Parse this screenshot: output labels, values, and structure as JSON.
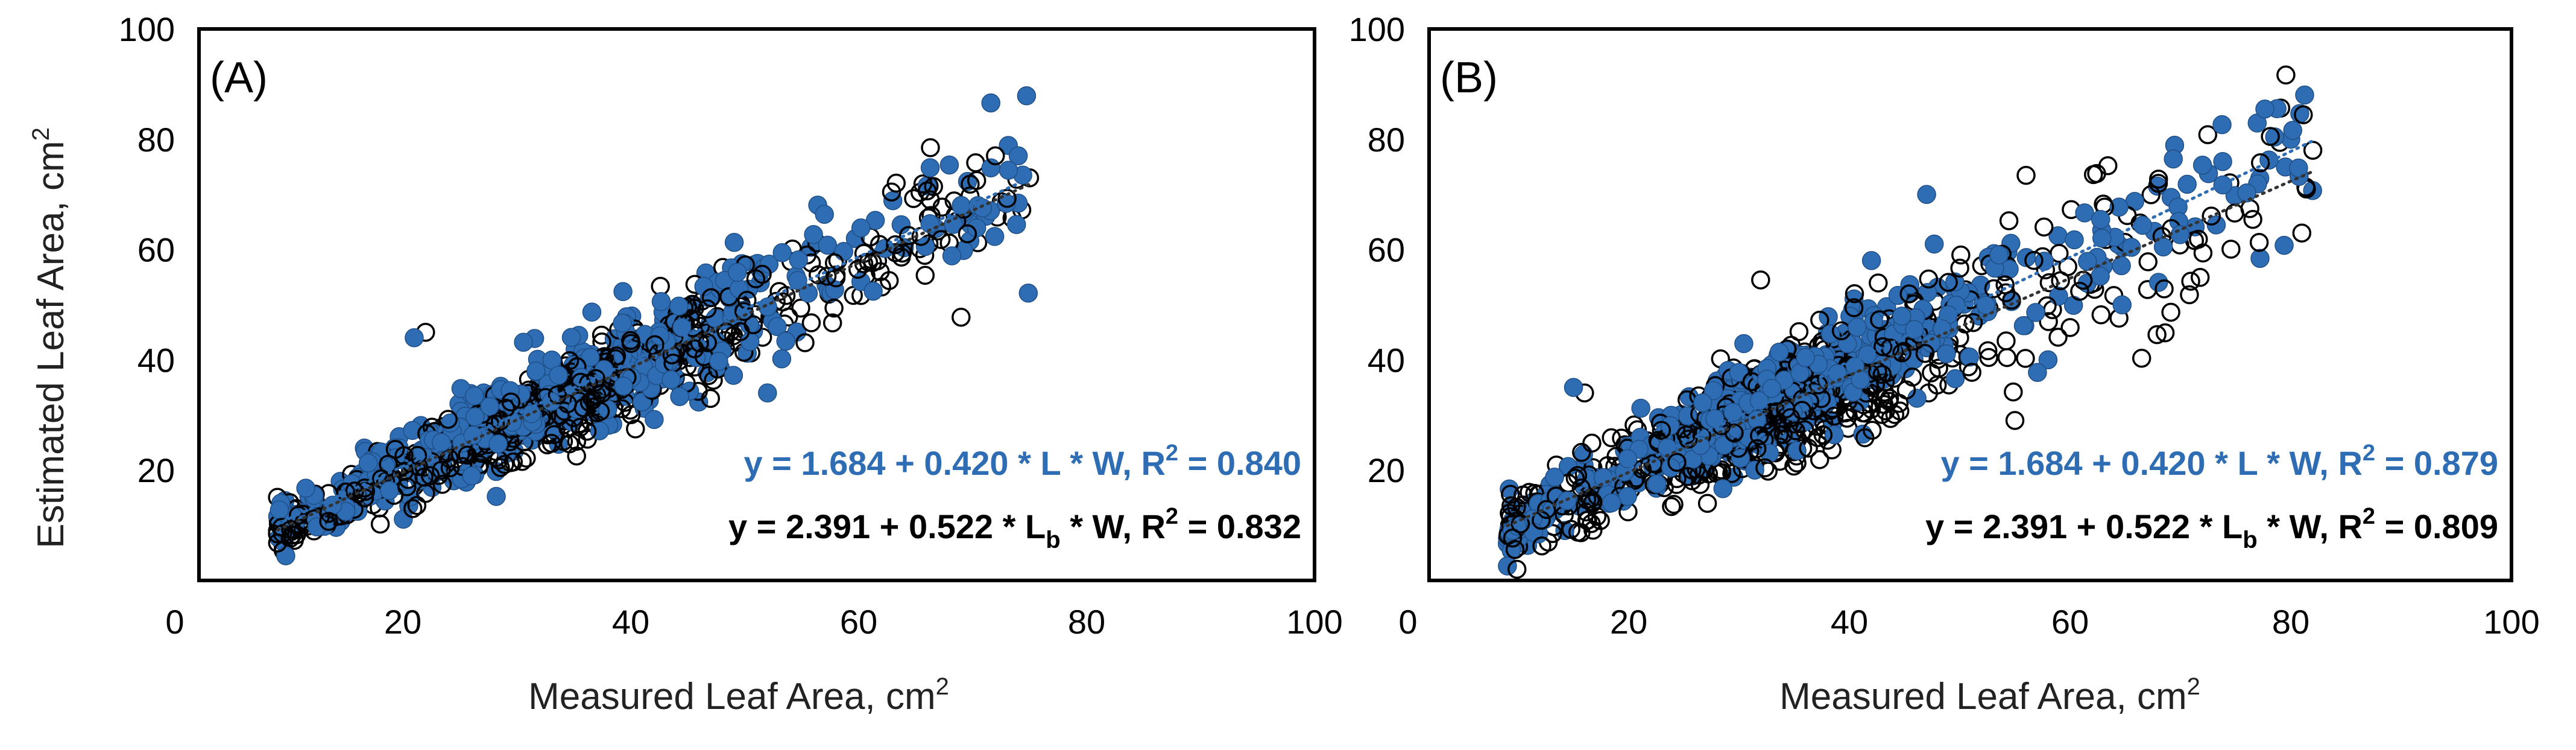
{
  "figure": {
    "ylabel_main": "Estimated Leaf Area, cm",
    "ylabel_sup": "2",
    "xlabel_main": "Measured Leaf Area, cm",
    "xlabel_sup": "2"
  },
  "colors": {
    "series_blue": "#2e6db4",
    "series_black": "#000000",
    "frame": "#000000"
  },
  "chart_data": [
    {
      "type": "scatter",
      "panel_label": "(A)",
      "xlim": [
        0,
        100
      ],
      "ylim": [
        0,
        100
      ],
      "x_ticks": [
        "0",
        "20",
        "40",
        "60",
        "80",
        "100"
      ],
      "y_ticks": [
        "20",
        "40",
        "60",
        "80",
        "100"
      ],
      "grid": false,
      "equations": [
        {
          "prefix": "y = 1.684 + 0.420 * L * W,",
          "r2_label": "R",
          "r2_sup": "2",
          "r2_value": " = 0.840",
          "color": "#2e6db4"
        },
        {
          "prefix": "y = 2.391 + 0.522 * L",
          "sub": "b",
          "suffix": " * W,",
          "r2_label": "R",
          "r2_sup": "2",
          "r2_value": " = 0.832",
          "color": "#000000"
        }
      ],
      "series": [
        {
          "style": "filled-blue",
          "x_range": [
            9,
            75
          ],
          "fit": {
            "intercept": 1.684,
            "slope": 0.95
          },
          "points": 520,
          "spread": 3.2
        },
        {
          "style": "open-black",
          "x_range": [
            9,
            75
          ],
          "fit": {
            "intercept": 0.6,
            "slope": 0.95
          },
          "points": 620,
          "spread": 2.8
        }
      ],
      "outliers": [
        [
          21,
          44
        ],
        [
          72,
          77
        ],
        [
          74,
          77
        ],
        [
          75,
          73
        ],
        [
          52,
          34
        ],
        [
          47,
          33
        ],
        [
          69,
          68
        ],
        [
          22,
          45
        ]
      ]
    },
    {
      "type": "scatter",
      "panel_label": "(B)",
      "xlim": [
        0,
        100
      ],
      "ylim": [
        0,
        100
      ],
      "x_ticks": [
        "0",
        "20",
        "40",
        "60",
        "80",
        "100"
      ],
      "y_ticks": [
        "20",
        "40",
        "60",
        "80",
        "100"
      ],
      "grid": false,
      "equations": [
        {
          "prefix": "y = 1.684 + 0.420 * L * W,",
          "r2_label": "R",
          "r2_sup": "2",
          "r2_value": " = 0.879",
          "color": "#2e6db4"
        },
        {
          "prefix": "y = 2.391 + 0.522 * L",
          "sub": "b",
          "suffix": " * W,",
          "r2_label": "R",
          "r2_sup": "2",
          "r2_value": " = 0.809",
          "color": "#000000"
        }
      ],
      "series": [
        {
          "style": "filled-blue",
          "x_range": [
            9,
            82
          ],
          "fit": {
            "intercept": 1.0,
            "slope": 0.96
          },
          "points": 500,
          "spread": 3.6
        },
        {
          "style": "open-black",
          "x_range": [
            9,
            82
          ],
          "fit": {
            "intercept": 2.0,
            "slope": 0.88
          },
          "points": 600,
          "spread": 4.2
        }
      ],
      "outliers": [
        [
          15,
          35
        ],
        [
          16,
          34
        ],
        [
          47,
          70
        ],
        [
          55,
          29
        ],
        [
          58,
          40
        ],
        [
          81,
          63
        ],
        [
          80,
          80
        ],
        [
          82,
          78
        ],
        [
          42,
          58
        ],
        [
          68,
          72
        ]
      ]
    }
  ]
}
